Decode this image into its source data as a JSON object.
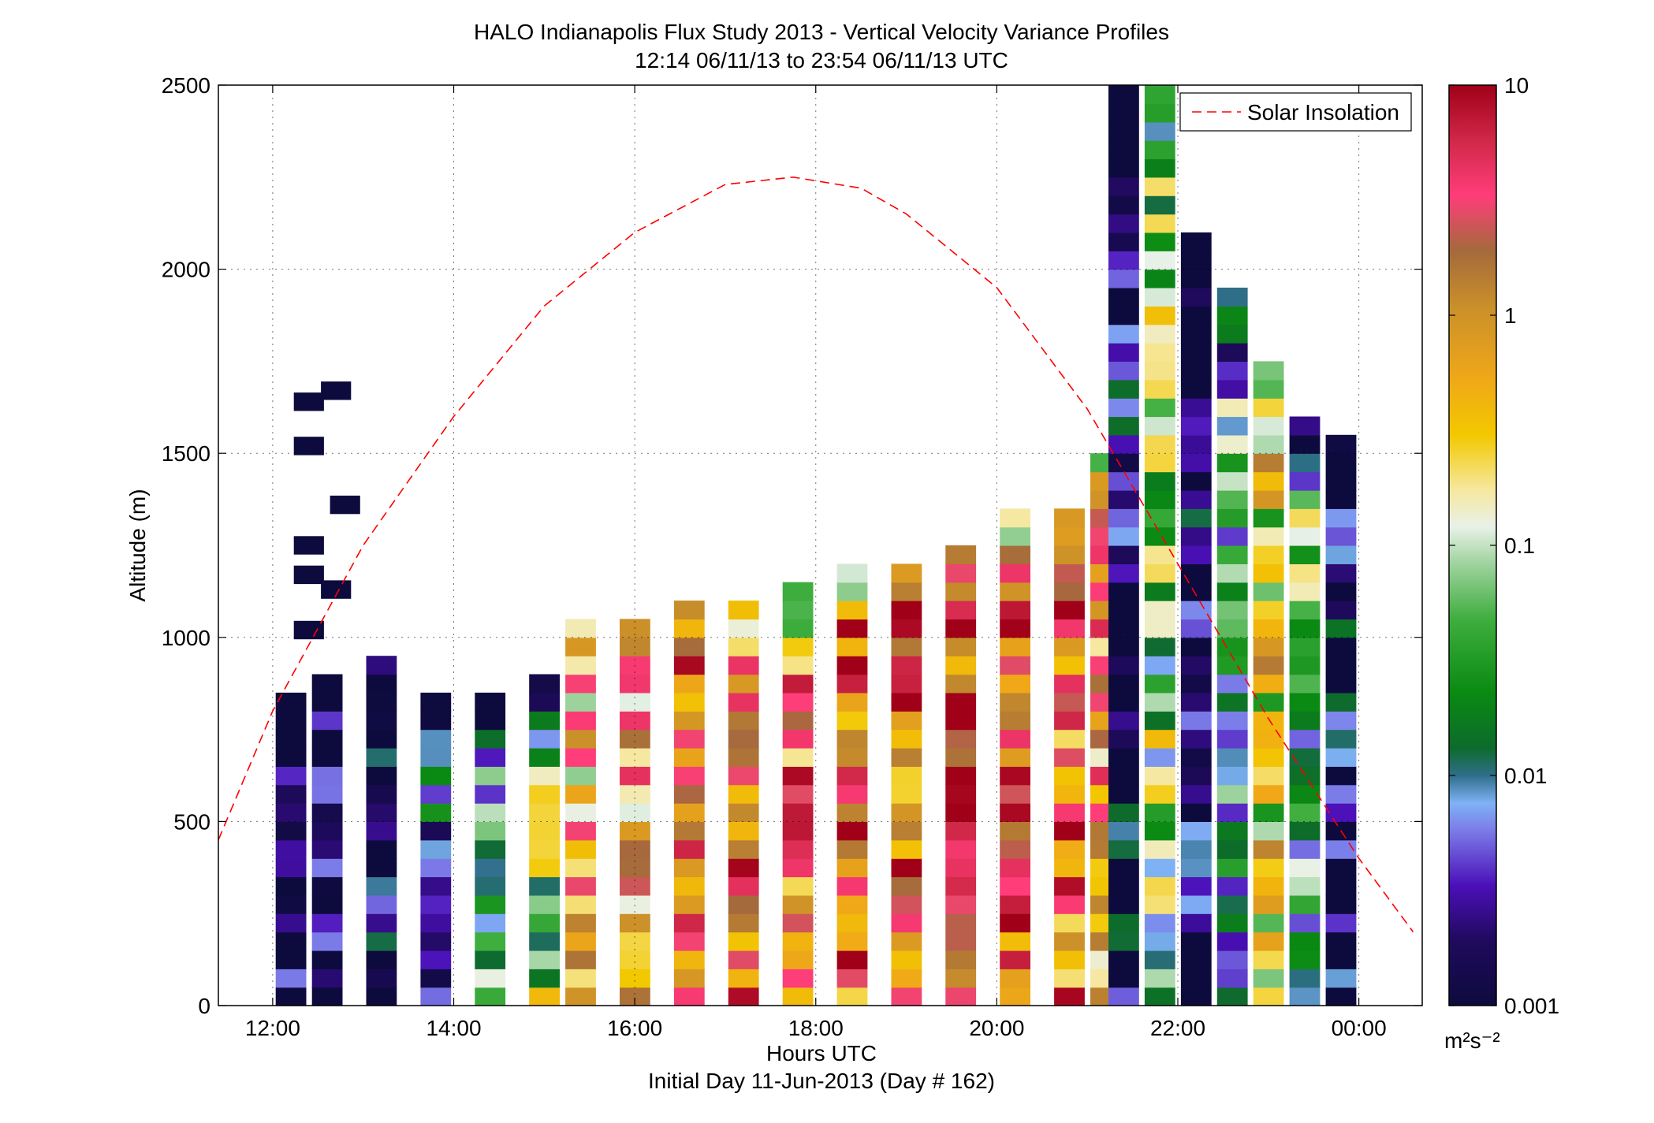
{
  "chart_data": {
    "type": "heatmap",
    "title": "HALO Indianapolis Flux Study 2013 - Vertical Velocity Variance Profiles",
    "subtitle": "12:14 06/11/13 to 23:54 06/11/13  UTC",
    "xlabel": "Hours UTC",
    "xlabel2": "Initial Day 11-Jun-2013 (Day # 162)",
    "ylabel": "Altitude (m)",
    "xlim": [
      11.4,
      24.7
    ],
    "ylim": [
      0,
      2500
    ],
    "x_ticks": [
      12,
      14,
      16,
      18,
      20,
      22,
      24
    ],
    "x_tick_labels": [
      "12:00",
      "14:00",
      "16:00",
      "18:00",
      "20:00",
      "22:00",
      "00:00"
    ],
    "y_ticks": [
      0,
      500,
      1000,
      1500,
      2000,
      2500
    ],
    "y_tick_labels": [
      "0",
      "500",
      "1000",
      "1500",
      "2000",
      "2500"
    ],
    "grid": true,
    "legend": {
      "placement": "top-right",
      "entries": [
        "Solar Insolation"
      ]
    },
    "colorbar": {
      "scale": "log",
      "range": [
        0.001,
        10
      ],
      "tick_values": [
        0.001,
        0.01,
        0.1,
        1,
        10
      ],
      "tick_labels": [
        "0.001",
        "0.01",
        "0.1",
        "1",
        "10"
      ],
      "unit": "m²s⁻²"
    },
    "series": [
      {
        "name": "Solar Insolation",
        "type": "line",
        "style": "dashed",
        "color": "#ff0000",
        "x": [
          11.4,
          12.0,
          13.0,
          14.0,
          15.0,
          16.0,
          17.0,
          17.75,
          18.5,
          19.0,
          20.0,
          21.0,
          22.0,
          23.0,
          24.0,
          24.6
        ],
        "y": [
          450,
          800,
          1250,
          1600,
          1900,
          2100,
          2230,
          2250,
          2220,
          2150,
          1950,
          1620,
          1200,
          780,
          400,
          200
        ]
      },
      {
        "name": "Vertical velocity variance",
        "type": "heatmap",
        "unit": "m²s⁻²",
        "z_scale": "log",
        "time_step_hours": 0.333,
        "altitude_step_m": 50,
        "columns": [
          {
            "x": 12.2,
            "top": 880,
            "value": 0.001
          },
          {
            "x": 12.6,
            "top": 910,
            "value": 0.001
          },
          {
            "x": 13.2,
            "top": 950,
            "value": 0.002
          },
          {
            "x": 13.8,
            "top": 870,
            "value": 0.005
          },
          {
            "x": 14.4,
            "top": 850,
            "value": 0.02
          },
          {
            "x": 15.0,
            "top": 900,
            "value": 0.05
          },
          {
            "x": 15.4,
            "top": 1060,
            "value": 0.6
          },
          {
            "x": 16.0,
            "top": 1080,
            "value": 0.8
          },
          {
            "x": 16.6,
            "top": 1100,
            "value": 1.2
          },
          {
            "x": 17.2,
            "top": 1130,
            "value": 1.5
          },
          {
            "x": 17.8,
            "top": 1150,
            "value": 1.3
          },
          {
            "x": 18.4,
            "top": 1200,
            "value": 1.8
          },
          {
            "x": 19.0,
            "top": 1230,
            "value": 2.0
          },
          {
            "x": 19.6,
            "top": 1270,
            "value": 2.2
          },
          {
            "x": 20.2,
            "top": 1370,
            "value": 1.9
          },
          {
            "x": 20.8,
            "top": 1380,
            "value": 1.6
          },
          {
            "x": 21.2,
            "top": 1500,
            "value": 0.9
          },
          {
            "x": 21.4,
            "top": 2500,
            "value": 0.002
          },
          {
            "x": 21.8,
            "top": 2500,
            "value": 0.05
          },
          {
            "x": 22.2,
            "top": 2100,
            "value": 0.002
          },
          {
            "x": 22.6,
            "top": 1950,
            "value": 0.02
          },
          {
            "x": 23.0,
            "top": 1750,
            "value": 0.2
          },
          {
            "x": 23.4,
            "top": 1600,
            "value": 0.03
          },
          {
            "x": 23.8,
            "top": 1560,
            "value": 0.002
          }
        ],
        "isolated_cells": [
          {
            "x": 12.4,
            "y": 1640,
            "value": 0.001
          },
          {
            "x": 12.7,
            "y": 1670,
            "value": 0.001
          },
          {
            "x": 12.4,
            "y": 1520,
            "value": 0.001
          },
          {
            "x": 12.8,
            "y": 1360,
            "value": 0.001
          },
          {
            "x": 12.4,
            "y": 1250,
            "value": 0.001
          },
          {
            "x": 12.4,
            "y": 1170,
            "value": 0.001
          },
          {
            "x": 12.7,
            "y": 1130,
            "value": 0.001
          },
          {
            "x": 12.4,
            "y": 1020,
            "value": 0.001
          }
        ]
      }
    ]
  }
}
